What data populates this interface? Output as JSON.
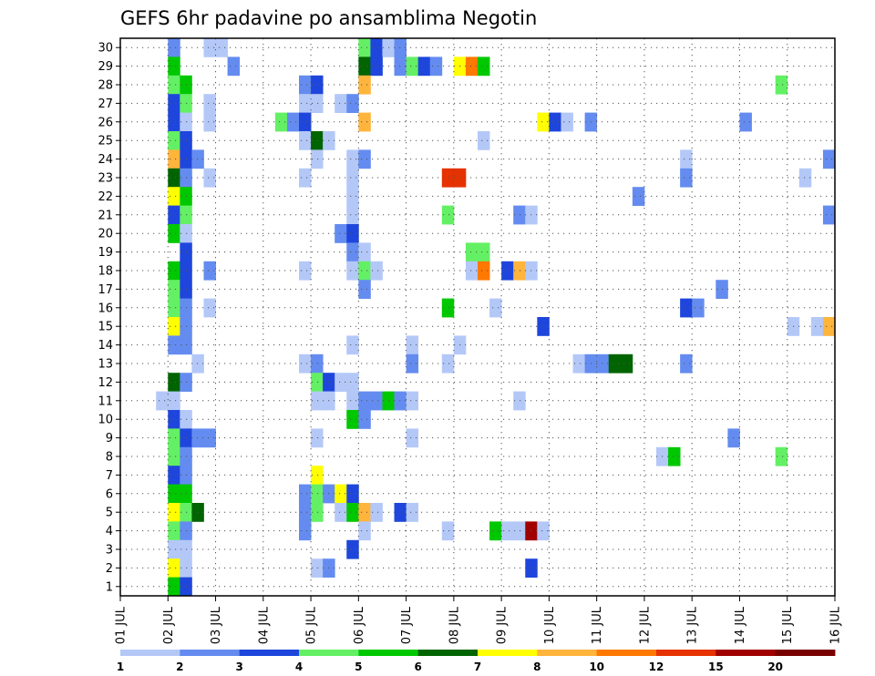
{
  "chart_data": {
    "type": "heatmap",
    "title": "GEFS 6hr padavine po ansamblima Negotin",
    "xlabel": "",
    "ylabel": "",
    "x_ticks": [
      "01 JUL",
      "02 JUL",
      "03 JUL",
      "04 JUL",
      "05 JUL",
      "06 JUL",
      "07 JUL",
      "08 JUL",
      "09 JUL",
      "10 JUL",
      "11 JUL",
      "12 JUL",
      "13 JUL",
      "14 JUL",
      "15 JUL",
      "16 JUL"
    ],
    "y_ticks": [
      "1",
      "2",
      "3",
      "4",
      "5",
      "6",
      "7",
      "8",
      "9",
      "10",
      "11",
      "12",
      "13",
      "14",
      "15",
      "16",
      "17",
      "18",
      "19",
      "20",
      "21",
      "22",
      "23",
      "24",
      "25",
      "26",
      "27",
      "28",
      "29",
      "30"
    ],
    "xlim_days": [
      1,
      16
    ],
    "ylim_members": [
      0,
      30
    ],
    "step_hours": 6,
    "grid": "dotted",
    "colorbar": {
      "placement": "bottom",
      "colors": [
        "#b4c8f8",
        "#648cf0",
        "#1e46dc",
        "#64f064",
        "#00c800",
        "#006400",
        "#ffff00",
        "#ffb43c",
        "#ff7800",
        "#e63200",
        "#a00000",
        "#780000"
      ],
      "labels": [
        "1",
        "2",
        "3",
        "4",
        "5",
        "6",
        "7",
        "8",
        "10",
        "12",
        "15",
        "20"
      ]
    },
    "cells": [
      {
        "m": 30,
        "d": "02 JUL 00z",
        "c": 2
      },
      {
        "m": 30,
        "d": "02 JUL 18z",
        "c": 1
      },
      {
        "m": 30,
        "d": "03 JUL 00z",
        "c": 1
      },
      {
        "m": 30,
        "d": "06 JUL 00z",
        "c": 4
      },
      {
        "m": 30,
        "d": "06 JUL 06z",
        "c": 3
      },
      {
        "m": 30,
        "d": "06 JUL 12z",
        "c": 1
      },
      {
        "m": 30,
        "d": "06 JUL 18z",
        "c": 2
      },
      {
        "m": 29,
        "d": "02 JUL 00z",
        "c": 5
      },
      {
        "m": 29,
        "d": "03 JUL 06z",
        "c": 2
      },
      {
        "m": 29,
        "d": "06 JUL 00z",
        "c": 6
      },
      {
        "m": 29,
        "d": "06 JUL 06z",
        "c": 3
      },
      {
        "m": 29,
        "d": "06 JUL 18z",
        "c": 2
      },
      {
        "m": 29,
        "d": "07 JUL 00z",
        "c": 4
      },
      {
        "m": 29,
        "d": "07 JUL 06z",
        "c": 3
      },
      {
        "m": 29,
        "d": "07 JUL 12z",
        "c": 2
      },
      {
        "m": 29,
        "d": "08 JUL 00z",
        "c": 7
      },
      {
        "m": 29,
        "d": "08 JUL 06z",
        "c": 9
      },
      {
        "m": 29,
        "d": "08 JUL 12z",
        "c": 5
      },
      {
        "m": 28,
        "d": "02 JUL 00z",
        "c": 4
      },
      {
        "m": 28,
        "d": "02 JUL 06z",
        "c": 5
      },
      {
        "m": 28,
        "d": "04 JUL 18z",
        "c": 2
      },
      {
        "m": 28,
        "d": "05 JUL 00z",
        "c": 3
      },
      {
        "m": 28,
        "d": "06 JUL 00z",
        "c": 8
      },
      {
        "m": 28,
        "d": "14 JUL 18z",
        "c": 4
      },
      {
        "m": 27,
        "d": "02 JUL 00z",
        "c": 3
      },
      {
        "m": 27,
        "d": "02 JUL 06z",
        "c": 4
      },
      {
        "m": 27,
        "d": "02 JUL 18z",
        "c": 1
      },
      {
        "m": 27,
        "d": "04 JUL 18z",
        "c": 1
      },
      {
        "m": 27,
        "d": "05 JUL 00z",
        "c": 1
      },
      {
        "m": 27,
        "d": "05 JUL 12z",
        "c": 1
      },
      {
        "m": 27,
        "d": "05 JUL 18z",
        "c": 2
      },
      {
        "m": 26,
        "d": "02 JUL 00z",
        "c": 3
      },
      {
        "m": 26,
        "d": "02 JUL 06z",
        "c": 1
      },
      {
        "m": 26,
        "d": "02 JUL 18z",
        "c": 1
      },
      {
        "m": 26,
        "d": "04 JUL 06z",
        "c": 4
      },
      {
        "m": 26,
        "d": "04 JUL 12z",
        "c": 2
      },
      {
        "m": 26,
        "d": "04 JUL 18z",
        "c": 3
      },
      {
        "m": 26,
        "d": "06 JUL 00z",
        "c": 8
      },
      {
        "m": 26,
        "d": "09 JUL 18z",
        "c": 7
      },
      {
        "m": 26,
        "d": "10 JUL 00z",
        "c": 3
      },
      {
        "m": 26,
        "d": "10 JUL 06z",
        "c": 1
      },
      {
        "m": 26,
        "d": "10 JUL 18z",
        "c": 2
      },
      {
        "m": 26,
        "d": "14 JUL 00z",
        "c": 2
      },
      {
        "m": 25,
        "d": "02 JUL 00z",
        "c": 4
      },
      {
        "m": 25,
        "d": "02 JUL 06z",
        "c": 3
      },
      {
        "m": 25,
        "d": "04 JUL 18z",
        "c": 1
      },
      {
        "m": 25,
        "d": "05 JUL 00z",
        "c": 6
      },
      {
        "m": 25,
        "d": "05 JUL 06z",
        "c": 1
      },
      {
        "m": 25,
        "d": "08 JUL 12z",
        "c": 1
      },
      {
        "m": 24,
        "d": "02 JUL 00z",
        "c": 8
      },
      {
        "m": 24,
        "d": "02 JUL 06z",
        "c": 3
      },
      {
        "m": 24,
        "d": "02 JUL 12z",
        "c": 2
      },
      {
        "m": 24,
        "d": "05 JUL 00z",
        "c": 1
      },
      {
        "m": 24,
        "d": "05 JUL 18z",
        "c": 1
      },
      {
        "m": 24,
        "d": "06 JUL 00z",
        "c": 2
      },
      {
        "m": 24,
        "d": "12 JUL 18z",
        "c": 1
      },
      {
        "m": 24,
        "d": "15 JUL 18z",
        "c": 2
      },
      {
        "m": 23,
        "d": "02 JUL 00z",
        "c": 6
      },
      {
        "m": 23,
        "d": "02 JUL 06z",
        "c": 2
      },
      {
        "m": 23,
        "d": "02 JUL 18z",
        "c": 1
      },
      {
        "m": 23,
        "d": "04 JUL 18z",
        "c": 1
      },
      {
        "m": 23,
        "d": "05 JUL 18z",
        "c": 1
      },
      {
        "m": 23,
        "d": "07 JUL 18z",
        "c": 10
      },
      {
        "m": 23,
        "d": "08 JUL 00z",
        "c": 10
      },
      {
        "m": 23,
        "d": "12 JUL 18z",
        "c": 2
      },
      {
        "m": 23,
        "d": "15 JUL 06z",
        "c": 1
      },
      {
        "m": 22,
        "d": "02 JUL 00z",
        "c": 7
      },
      {
        "m": 22,
        "d": "02 JUL 06z",
        "c": 5
      },
      {
        "m": 22,
        "d": "05 JUL 18z",
        "c": 1
      },
      {
        "m": 22,
        "d": "11 JUL 18z",
        "c": 2
      },
      {
        "m": 21,
        "d": "02 JUL 00z",
        "c": 3
      },
      {
        "m": 21,
        "d": "02 JUL 06z",
        "c": 4
      },
      {
        "m": 21,
        "d": "05 JUL 18z",
        "c": 1
      },
      {
        "m": 21,
        "d": "07 JUL 18z",
        "c": 4
      },
      {
        "m": 21,
        "d": "09 JUL 06z",
        "c": 2
      },
      {
        "m": 21,
        "d": "09 JUL 12z",
        "c": 1
      },
      {
        "m": 21,
        "d": "15 JUL 18z",
        "c": 2
      },
      {
        "m": 20,
        "d": "02 JUL 00z",
        "c": 5
      },
      {
        "m": 20,
        "d": "02 JUL 06z",
        "c": 1
      },
      {
        "m": 20,
        "d": "05 JUL 12z",
        "c": 2
      },
      {
        "m": 20,
        "d": "05 JUL 18z",
        "c": 3
      },
      {
        "m": 19,
        "d": "02 JUL 06z",
        "c": 3
      },
      {
        "m": 19,
        "d": "05 JUL 18z",
        "c": 2
      },
      {
        "m": 19,
        "d": "06 JUL 00z",
        "c": 1
      },
      {
        "m": 19,
        "d": "08 JUL 06z",
        "c": 4
      },
      {
        "m": 19,
        "d": "08 JUL 12z",
        "c": 4
      },
      {
        "m": 18,
        "d": "02 JUL 00z",
        "c": 5
      },
      {
        "m": 18,
        "d": "02 JUL 06z",
        "c": 3
      },
      {
        "m": 18,
        "d": "02 JUL 18z",
        "c": 2
      },
      {
        "m": 18,
        "d": "04 JUL 18z",
        "c": 1
      },
      {
        "m": 18,
        "d": "05 JUL 18z",
        "c": 1
      },
      {
        "m": 18,
        "d": "06 JUL 00z",
        "c": 4
      },
      {
        "m": 18,
        "d": "06 JUL 06z",
        "c": 1
      },
      {
        "m": 18,
        "d": "08 JUL 06z",
        "c": 1
      },
      {
        "m": 18,
        "d": "08 JUL 12z",
        "c": 9
      },
      {
        "m": 18,
        "d": "09 JUL 00z",
        "c": 3
      },
      {
        "m": 18,
        "d": "09 JUL 06z",
        "c": 8
      },
      {
        "m": 18,
        "d": "09 JUL 12z",
        "c": 1
      },
      {
        "m": 17,
        "d": "02 JUL 00z",
        "c": 4
      },
      {
        "m": 17,
        "d": "02 JUL 06z",
        "c": 3
      },
      {
        "m": 17,
        "d": "06 JUL 00z",
        "c": 2
      },
      {
        "m": 17,
        "d": "13 JUL 12z",
        "c": 2
      },
      {
        "m": 16,
        "d": "02 JUL 00z",
        "c": 4
      },
      {
        "m": 16,
        "d": "02 JUL 06z",
        "c": 2
      },
      {
        "m": 16,
        "d": "02 JUL 18z",
        "c": 1
      },
      {
        "m": 16,
        "d": "07 JUL 18z",
        "c": 5
      },
      {
        "m": 16,
        "d": "08 JUL 18z",
        "c": 1
      },
      {
        "m": 16,
        "d": "12 JUL 18z",
        "c": 3
      },
      {
        "m": 16,
        "d": "13 JUL 00z",
        "c": 2
      },
      {
        "m": 15,
        "d": "02 JUL 00z",
        "c": 7
      },
      {
        "m": 15,
        "d": "02 JUL 06z",
        "c": 2
      },
      {
        "m": 15,
        "d": "09 JUL 18z",
        "c": 3
      },
      {
        "m": 15,
        "d": "15 JUL 00z",
        "c": 1
      },
      {
        "m": 15,
        "d": "15 JUL 12z",
        "c": 1
      },
      {
        "m": 15,
        "d": "15 JUL 18z",
        "c": 8
      },
      {
        "m": 14,
        "d": "02 JUL 00z",
        "c": 2
      },
      {
        "m": 14,
        "d": "02 JUL 06z",
        "c": 2
      },
      {
        "m": 14,
        "d": "05 JUL 18z",
        "c": 1
      },
      {
        "m": 14,
        "d": "07 JUL 00z",
        "c": 1
      },
      {
        "m": 14,
        "d": "08 JUL 00z",
        "c": 1
      },
      {
        "m": 13,
        "d": "02 JUL 12z",
        "c": 1
      },
      {
        "m": 13,
        "d": "04 JUL 18z",
        "c": 1
      },
      {
        "m": 13,
        "d": "05 JUL 00z",
        "c": 2
      },
      {
        "m": 13,
        "d": "07 JUL 00z",
        "c": 2
      },
      {
        "m": 13,
        "d": "07 JUL 18z",
        "c": 1
      },
      {
        "m": 13,
        "d": "10 JUL 12z",
        "c": 1
      },
      {
        "m": 13,
        "d": "10 JUL 18z",
        "c": 2
      },
      {
        "m": 13,
        "d": "11 JUL 00z",
        "c": 2
      },
      {
        "m": 13,
        "d": "11 JUL 06z",
        "c": 6
      },
      {
        "m": 13,
        "d": "11 JUL 12z",
        "c": 6
      },
      {
        "m": 13,
        "d": "12 JUL 18z",
        "c": 2
      },
      {
        "m": 12,
        "d": "02 JUL 00z",
        "c": 6
      },
      {
        "m": 12,
        "d": "02 JUL 06z",
        "c": 2
      },
      {
        "m": 12,
        "d": "05 JUL 00z",
        "c": 4
      },
      {
        "m": 12,
        "d": "05 JUL 06z",
        "c": 3
      },
      {
        "m": 12,
        "d": "05 JUL 12z",
        "c": 1
      },
      {
        "m": 12,
        "d": "05 JUL 18z",
        "c": 1
      },
      {
        "m": 11,
        "d": "01 JUL 18z",
        "c": 1
      },
      {
        "m": 11,
        "d": "02 JUL 00z",
        "c": 1
      },
      {
        "m": 11,
        "d": "05 JUL 00z",
        "c": 1
      },
      {
        "m": 11,
        "d": "05 JUL 06z",
        "c": 1
      },
      {
        "m": 11,
        "d": "05 JUL 18z",
        "c": 1
      },
      {
        "m": 11,
        "d": "06 JUL 00z",
        "c": 2
      },
      {
        "m": 11,
        "d": "06 JUL 06z",
        "c": 2
      },
      {
        "m": 11,
        "d": "06 JUL 12z",
        "c": 5
      },
      {
        "m": 11,
        "d": "06 JUL 18z",
        "c": 2
      },
      {
        "m": 11,
        "d": "07 JUL 00z",
        "c": 1
      },
      {
        "m": 11,
        "d": "09 JUL 06z",
        "c": 1
      },
      {
        "m": 10,
        "d": "02 JUL 00z",
        "c": 3
      },
      {
        "m": 10,
        "d": "02 JUL 06z",
        "c": 1
      },
      {
        "m": 10,
        "d": "05 JUL 18z",
        "c": 5
      },
      {
        "m": 10,
        "d": "06 JUL 00z",
        "c": 2
      },
      {
        "m": 9,
        "d": "02 JUL 00z",
        "c": 4
      },
      {
        "m": 9,
        "d": "02 JUL 06z",
        "c": 3
      },
      {
        "m": 9,
        "d": "02 JUL 12z",
        "c": 2
      },
      {
        "m": 9,
        "d": "02 JUL 18z",
        "c": 2
      },
      {
        "m": 9,
        "d": "05 JUL 00z",
        "c": 1
      },
      {
        "m": 9,
        "d": "07 JUL 00z",
        "c": 1
      },
      {
        "m": 9,
        "d": "13 JUL 18z",
        "c": 2
      },
      {
        "m": 8,
        "d": "02 JUL 00z",
        "c": 4
      },
      {
        "m": 8,
        "d": "02 JUL 06z",
        "c": 2
      },
      {
        "m": 8,
        "d": "12 JUL 06z",
        "c": 1
      },
      {
        "m": 8,
        "d": "12 JUL 12z",
        "c": 5
      },
      {
        "m": 8,
        "d": "14 JUL 18z",
        "c": 4
      },
      {
        "m": 7,
        "d": "02 JUL 00z",
        "c": 3
      },
      {
        "m": 7,
        "d": "02 JUL 06z",
        "c": 2
      },
      {
        "m": 7,
        "d": "05 JUL 00z",
        "c": 7
      },
      {
        "m": 6,
        "d": "02 JUL 00z",
        "c": 5
      },
      {
        "m": 6,
        "d": "02 JUL 06z",
        "c": 5
      },
      {
        "m": 6,
        "d": "04 JUL 18z",
        "c": 2
      },
      {
        "m": 6,
        "d": "05 JUL 00z",
        "c": 4
      },
      {
        "m": 6,
        "d": "05 JUL 06z",
        "c": 2
      },
      {
        "m": 6,
        "d": "05 JUL 12z",
        "c": 7
      },
      {
        "m": 6,
        "d": "05 JUL 18z",
        "c": 3
      },
      {
        "m": 5,
        "d": "02 JUL 00z",
        "c": 7
      },
      {
        "m": 5,
        "d": "02 JUL 06z",
        "c": 4
      },
      {
        "m": 5,
        "d": "02 JUL 12z",
        "c": 6
      },
      {
        "m": 5,
        "d": "04 JUL 18z",
        "c": 2
      },
      {
        "m": 5,
        "d": "05 JUL 00z",
        "c": 4
      },
      {
        "m": 5,
        "d": "05 JUL 12z",
        "c": 1
      },
      {
        "m": 5,
        "d": "05 JUL 18z",
        "c": 5
      },
      {
        "m": 5,
        "d": "06 JUL 00z",
        "c": 8
      },
      {
        "m": 5,
        "d": "06 JUL 06z",
        "c": 1
      },
      {
        "m": 5,
        "d": "06 JUL 18z",
        "c": 3
      },
      {
        "m": 5,
        "d": "07 JUL 00z",
        "c": 1
      },
      {
        "m": 4,
        "d": "02 JUL 00z",
        "c": 4
      },
      {
        "m": 4,
        "d": "02 JUL 06z",
        "c": 2
      },
      {
        "m": 4,
        "d": "04 JUL 18z",
        "c": 2
      },
      {
        "m": 4,
        "d": "06 JUL 00z",
        "c": 1
      },
      {
        "m": 4,
        "d": "07 JUL 18z",
        "c": 1
      },
      {
        "m": 4,
        "d": "08 JUL 18z",
        "c": 5
      },
      {
        "m": 4,
        "d": "09 JUL 00z",
        "c": 1
      },
      {
        "m": 4,
        "d": "09 JUL 06z",
        "c": 1
      },
      {
        "m": 4,
        "d": "09 JUL 12z",
        "c": 11
      },
      {
        "m": 4,
        "d": "09 JUL 18z",
        "c": 1
      },
      {
        "m": 3,
        "d": "02 JUL 00z",
        "c": 1
      },
      {
        "m": 3,
        "d": "02 JUL 06z",
        "c": 1
      },
      {
        "m": 3,
        "d": "05 JUL 18z",
        "c": 3
      },
      {
        "m": 2,
        "d": "02 JUL 00z",
        "c": 7
      },
      {
        "m": 2,
        "d": "02 JUL 06z",
        "c": 1
      },
      {
        "m": 2,
        "d": "05 JUL 00z",
        "c": 1
      },
      {
        "m": 2,
        "d": "05 JUL 06z",
        "c": 2
      },
      {
        "m": 2,
        "d": "09 JUL 12z",
        "c": 3
      },
      {
        "m": 1,
        "d": "02 JUL 00z",
        "c": 5
      },
      {
        "m": 1,
        "d": "02 JUL 06z",
        "c": 3
      }
    ]
  }
}
